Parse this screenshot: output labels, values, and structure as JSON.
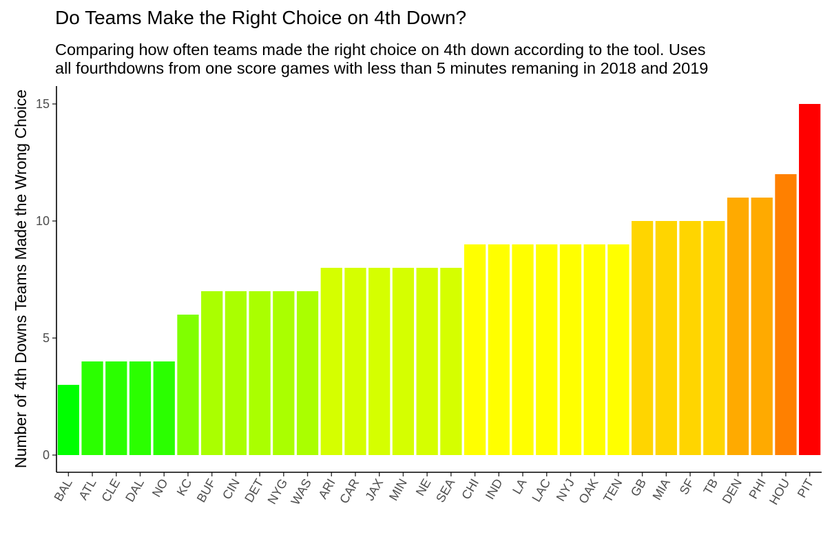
{
  "chart_data": {
    "type": "bar",
    "title": "Do Teams Make the Right Choice on 4th Down?",
    "subtitle_lines": [
      "Comparing how often teams made the right choice on 4th down according to the tool. Uses",
      "all fourthdowns from one score games with less than 5 minutes remaning in 2018 and 2019"
    ],
    "xlabel": "",
    "ylabel": "Number of 4th Downs Teams Made the Wrong Choice",
    "ylim": [
      0,
      15.75
    ],
    "yticks": [
      0,
      5,
      10,
      15
    ],
    "grid": false,
    "legend": "none",
    "categories": [
      "BAL",
      "ATL",
      "CLE",
      "DAL",
      "NO",
      "KC",
      "BUF",
      "CIN",
      "DET",
      "NYG",
      "WAS",
      "ARI",
      "CAR",
      "JAX",
      "MIN",
      "NE",
      "SEA",
      "CHI",
      "IND",
      "LA",
      "LAC",
      "NYJ",
      "OAK",
      "TEN",
      "GB",
      "MIA",
      "SF",
      "TB",
      "DEN",
      "PHI",
      "HOU",
      "PIT"
    ],
    "values": [
      3,
      4,
      4,
      4,
      4,
      6,
      7,
      7,
      7,
      7,
      7,
      8,
      8,
      8,
      8,
      8,
      8,
      9,
      9,
      9,
      9,
      9,
      9,
      9,
      10,
      10,
      10,
      10,
      11,
      11,
      12,
      15
    ],
    "color_scale": {
      "low": "#00ff00",
      "mid": "#ffff00",
      "high": "#ff0000",
      "domain": [
        3,
        9,
        15
      ]
    }
  }
}
